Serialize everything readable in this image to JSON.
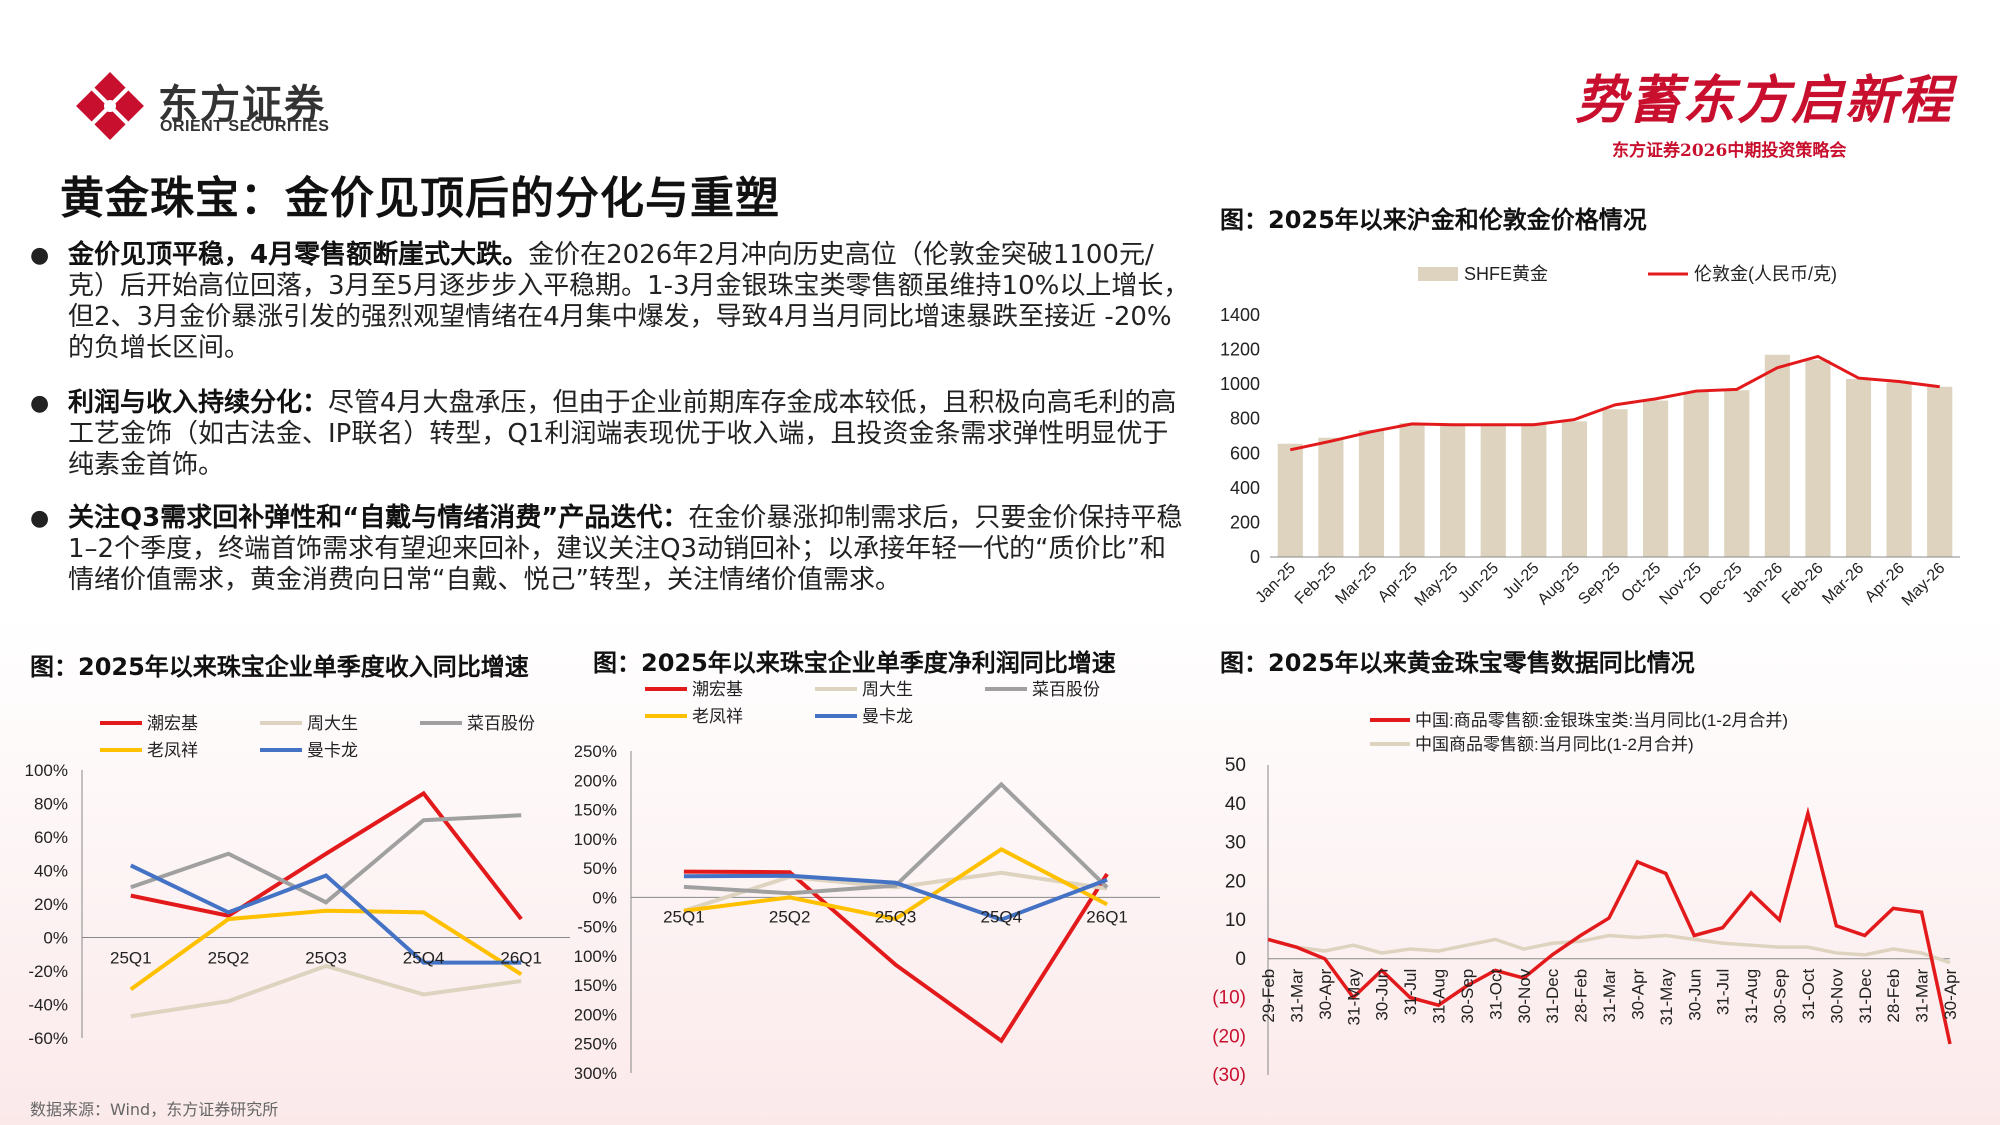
{
  "header": {
    "logo_cn": "东方证券",
    "logo_en": "ORIENT SECURITIES",
    "slogan": "势蓄东方启新程",
    "slogan_sub": "东方证券2026中期投资策略会",
    "page_title": "黄金珠宝：金价见顶后的分化与重塑",
    "accent": "#c8102e"
  },
  "bullets": [
    {
      "bold": "金价见顶平稳，4月零售额断崖式大跌。",
      "text": "金价在2026年2月冲向历史高位（伦敦金突破1100元/克）后开始高位回落，3月至5月逐步步入平稳期。1-3月金银珠宝类零售额虽维持10%以上增长，但2、3月金价暴涨引发的强烈观望情绪在4月集中爆发，导致4月当月同比增速暴跌至接近 -20% 的负增长区间。"
    },
    {
      "bold": "利润与收入持续分化：",
      "text": "尽管4月大盘承压，但由于企业前期库存金成本较低，且积极向高毛利的高工艺金饰（如古法金、IP联名）转型，Q1利润端表现优于收入端，且投资金条需求弹性明显优于纯素金首饰。"
    },
    {
      "bold": "关注Q3需求回补弹性和“自戴与情绪消费”产品迭代：",
      "text": "在金价暴涨抑制需求后，只要金价保持平稳1–2个季度，终端首饰需求有望迎来回补，建议关注Q3动销回补；以承接年轻一代的“质价比”和情绪价值需求，黄金消费向日常“自戴、悦己”转型，关注情绪价值需求。"
    }
  ],
  "source": "数据来源：Wind，东方证券研究所",
  "chart_data": [
    {
      "id": "gold_price",
      "type": "bar+line",
      "title": "图：2025年以来沪金和伦敦金价格情况",
      "categories": [
        "Jan-25",
        "Feb-25",
        "Mar-25",
        "Apr-25",
        "May-25",
        "Jun-25",
        "Jul-25",
        "Aug-25",
        "Sep-25",
        "Oct-25",
        "Nov-25",
        "Dec-25",
        "Jan-26",
        "Feb-26",
        "Mar-26",
        "Apr-26",
        "May-26"
      ],
      "series": [
        {
          "name": "SHFE黄金",
          "kind": "bar",
          "color": "#ddd3bf",
          "values": [
            655,
            690,
            735,
            775,
            765,
            770,
            775,
            785,
            855,
            905,
            955,
            965,
            1170,
            1140,
            1030,
            1010,
            985
          ]
        },
        {
          "name": "伦敦金(人民币/克)",
          "kind": "line",
          "color": "#e31a1c",
          "values": [
            620,
            670,
            725,
            770,
            765,
            765,
            765,
            795,
            880,
            915,
            960,
            970,
            1095,
            1160,
            1035,
            1015,
            985
          ]
        }
      ],
      "ylim": [
        0,
        1400
      ],
      "yticks": [
        0,
        200,
        400,
        600,
        800,
        1000,
        1200,
        1400
      ],
      "legend": "top"
    },
    {
      "id": "retail_yoy",
      "type": "line",
      "title": "图：2025年以来黄金珠宝零售数据同比情况",
      "categories": [
        "29-Feb",
        "31-Mar",
        "30-Apr",
        "31-May",
        "30-Jun",
        "31-Jul",
        "31-Aug",
        "30-Sep",
        "31-Oct",
        "30-Nov",
        "31-Dec",
        "28-Feb",
        "31-Mar",
        "30-Apr",
        "31-May",
        "30-Jun",
        "31-Jul",
        "31-Aug",
        "30-Sep",
        "31-Oct",
        "30-Nov",
        "31-Dec",
        "28-Feb",
        "31-Mar",
        "30-Apr"
      ],
      "series": [
        {
          "name": "中国:商品零售额:金银珠宝类:当月同比(1-2月合并)",
          "color": "#e31a1c",
          "values": [
            5,
            3,
            0,
            -10,
            -3,
            -10,
            -12,
            -7,
            -3,
            -5,
            1,
            6,
            10.5,
            25,
            22,
            6,
            8,
            17,
            10,
            37.5,
            8.5,
            6,
            13,
            12,
            -22
          ]
        },
        {
          "name": "中国商品零售额:当月同比(1-2月合并)",
          "color": "#ddd3bf",
          "values": [
            5,
            3,
            2,
            3.5,
            1.5,
            2.5,
            2,
            3.5,
            5,
            2.5,
            4,
            4.5,
            6,
            5.5,
            6,
            5,
            4,
            3.5,
            3,
            3,
            1.5,
            1,
            2.5,
            1.5,
            -1
          ]
        }
      ],
      "ylim": [
        -30,
        50
      ],
      "yticks": [
        "50",
        "40",
        "30",
        "20",
        "10",
        "0",
        "(10)",
        "(20)",
        "(30)"
      ],
      "legend": "top-left"
    },
    {
      "id": "revenue_q",
      "type": "line",
      "title": "图：2025年以来珠宝企业单季度收入同比增速",
      "categories": [
        "25Q1",
        "25Q2",
        "25Q3",
        "25Q4",
        "26Q1"
      ],
      "series": [
        {
          "name": "潮宏基",
          "color": "#e31a1c",
          "values": [
            25,
            13,
            50,
            86,
            11
          ]
        },
        {
          "name": "周大生",
          "color": "#ddd3bf",
          "values": [
            -47,
            -38,
            -17,
            -34,
            -26
          ]
        },
        {
          "name": "菜百股份",
          "color": "#a0a0a0",
          "values": [
            30,
            50,
            21,
            70,
            73
          ]
        },
        {
          "name": "老凤祥",
          "color": "#ffc000",
          "values": [
            -31,
            11,
            16,
            15,
            -22
          ]
        },
        {
          "name": "曼卡龙",
          "color": "#4472c4",
          "values": [
            43,
            15,
            37,
            -15,
            -15
          ]
        }
      ],
      "ylim": [
        -60,
        100
      ],
      "yticks": [
        "100%",
        "80%",
        "60%",
        "40%",
        "20%",
        "0%",
        "-20%",
        "-40%",
        "-60%"
      ],
      "legend": "top"
    },
    {
      "id": "profit_q",
      "type": "line",
      "title": "图：2025年以来珠宝企业单季度净利润同比增速",
      "categories": [
        "25Q1",
        "25Q2",
        "25Q3",
        "25Q4",
        "26Q1"
      ],
      "series": [
        {
          "name": "潮宏基",
          "color": "#e31a1c",
          "values": [
            44,
            43,
            -115,
            -245,
            40
          ]
        },
        {
          "name": "周大生",
          "color": "#ddd3bf",
          "values": [
            -23,
            35,
            17,
            42,
            15
          ]
        },
        {
          "name": "菜百股份",
          "color": "#a0a0a0",
          "values": [
            18,
            7,
            20,
            193,
            17
          ]
        },
        {
          "name": "老凤祥",
          "color": "#ffc000",
          "values": [
            -23,
            0,
            -37,
            82,
            -12
          ]
        },
        {
          "name": "曼卡龙",
          "color": "#4472c4",
          "values": [
            36,
            37,
            25,
            -38,
            30
          ]
        }
      ],
      "ylim": [
        -300,
        250
      ],
      "yticks": [
        "250%",
        "200%",
        "150%",
        "100%",
        "50%",
        "0%",
        "-50%",
        "-100%",
        "-150%",
        "-200%",
        "-250%",
        "-300%"
      ],
      "legend": "top"
    }
  ]
}
